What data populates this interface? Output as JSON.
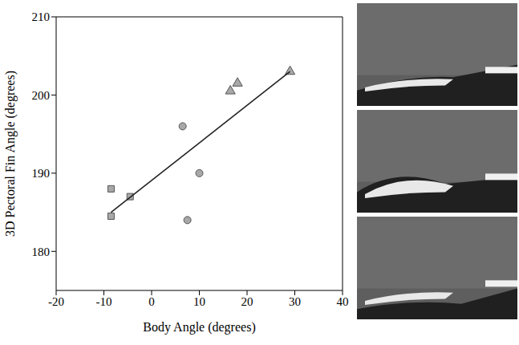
{
  "chart_data": {
    "type": "scatter",
    "x_label": "Body Angle (degrees)",
    "y_label": "3D Pectoral Fin Angle (degrees)",
    "xlim": [
      -20,
      40
    ],
    "xticks": [
      -20,
      -10,
      0,
      10,
      20,
      30,
      40
    ],
    "ylim": [
      175,
      210
    ],
    "yticks": [
      180,
      190,
      200,
      210
    ],
    "grid": false,
    "series": [
      {
        "marker": "square",
        "color": "#a8a8a8",
        "x": [
          -8.5,
          -8.5,
          -4.5
        ],
        "y": [
          184.5,
          188,
          187
        ]
      },
      {
        "marker": "circle",
        "color": "#a8a8a8",
        "x": [
          6.5,
          10,
          7.5
        ],
        "y": [
          196,
          190,
          184
        ]
      },
      {
        "marker": "triangle",
        "color": "#a8a8a8",
        "x": [
          16.5,
          18,
          29
        ],
        "y": [
          200.5,
          201.5,
          203
        ]
      },
      {
        "type": "line",
        "line_style": "solid",
        "color": "#222222",
        "x": [
          -8.5,
          29
        ],
        "y": [
          185,
          203
        ]
      }
    ]
  }
}
